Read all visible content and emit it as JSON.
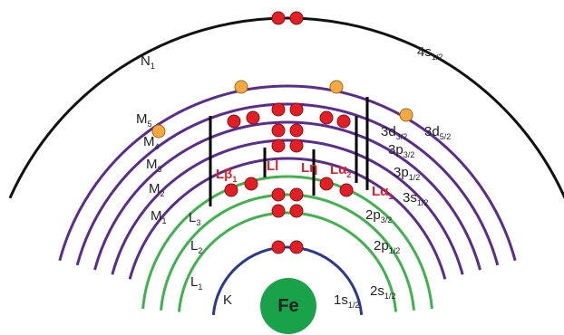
{
  "outer": [
    {
      "main": "N",
      "sub": "1"
    },
    {
      "main": "4s",
      "sub": "1/2"
    }
  ],
  "m_shells": [
    {
      "main": "M",
      "sub": "5"
    },
    {
      "main": "M",
      "sub": "4"
    },
    {
      "main": "M",
      "sub": "3"
    },
    {
      "main": "M",
      "sub": "2"
    },
    {
      "main": "M",
      "sub": "1"
    }
  ],
  "m_orbitals": [
    {
      "main": "3d",
      "sub": "3/2"
    },
    {
      "main": "3d",
      "sub": "5/2"
    },
    {
      "main": "3p",
      "sub": "3/2"
    },
    {
      "main": "3p",
      "sub": "1/2"
    },
    {
      "main": "3s",
      "sub": "1/2"
    }
  ],
  "l_shells": [
    {
      "main": "L",
      "sub": "3"
    },
    {
      "main": "L",
      "sub": "2"
    },
    {
      "main": "L",
      "sub": "1"
    }
  ],
  "l_orbitals": [
    {
      "main": "2p",
      "sub": "3/2"
    },
    {
      "main": "2p",
      "sub": "1/2"
    },
    {
      "main": "2s",
      "sub": "1/2"
    }
  ],
  "k_shell": {
    "main": "K",
    "orbital": "1s",
    "sub": "1/2"
  },
  "nucleus": "Fe",
  "transitions": [
    {
      "main": "Lβ",
      "sub": "1"
    },
    {
      "main": "Ll"
    },
    {
      "main": "Lη"
    },
    {
      "main": "Lα",
      "sub": "2"
    },
    {
      "main": "Lα",
      "sub": "1"
    }
  ]
}
